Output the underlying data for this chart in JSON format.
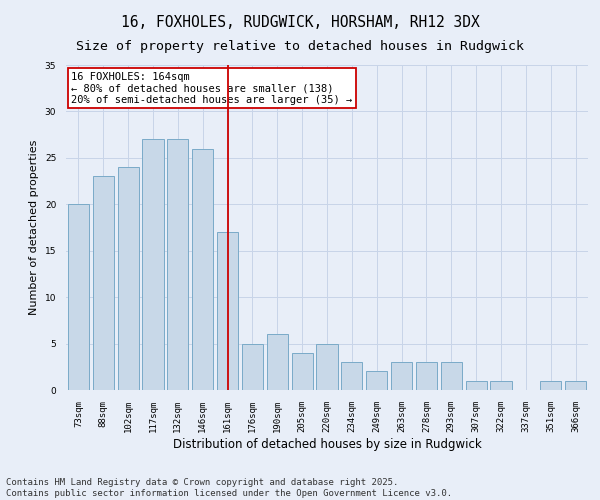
{
  "title": "16, FOXHOLES, RUDGWICK, HORSHAM, RH12 3DX",
  "subtitle": "Size of property relative to detached houses in Rudgwick",
  "xlabel": "Distribution of detached houses by size in Rudgwick",
  "ylabel": "Number of detached properties",
  "categories": [
    "73sqm",
    "88sqm",
    "102sqm",
    "117sqm",
    "132sqm",
    "146sqm",
    "161sqm",
    "176sqm",
    "190sqm",
    "205sqm",
    "220sqm",
    "234sqm",
    "249sqm",
    "263sqm",
    "278sqm",
    "293sqm",
    "307sqm",
    "322sqm",
    "337sqm",
    "351sqm",
    "366sqm"
  ],
  "values": [
    20,
    23,
    24,
    27,
    27,
    26,
    17,
    5,
    6,
    4,
    5,
    3,
    2,
    3,
    3,
    3,
    1,
    1,
    0,
    1,
    1
  ],
  "bar_color": "#c8d8e8",
  "bar_edge_color": "#7aaac8",
  "vline_x_index": 6,
  "vline_color": "#cc0000",
  "annotation_line1": "16 FOXHOLES: 164sqm",
  "annotation_line2": "← 80% of detached houses are smaller (138)",
  "annotation_line3": "20% of semi-detached houses are larger (35) →",
  "annotation_box_color": "#ffffff",
  "annotation_box_edge_color": "#cc0000",
  "ylim": [
    0,
    35
  ],
  "yticks": [
    0,
    5,
    10,
    15,
    20,
    25,
    30,
    35
  ],
  "grid_color": "#c8d4e8",
  "background_color": "#e8eef8",
  "footer": "Contains HM Land Registry data © Crown copyright and database right 2025.\nContains public sector information licensed under the Open Government Licence v3.0.",
  "title_fontsize": 10.5,
  "subtitle_fontsize": 9.5,
  "xlabel_fontsize": 8.5,
  "ylabel_fontsize": 8,
  "tick_fontsize": 6.5,
  "annotation_fontsize": 7.5,
  "footer_fontsize": 6.5
}
